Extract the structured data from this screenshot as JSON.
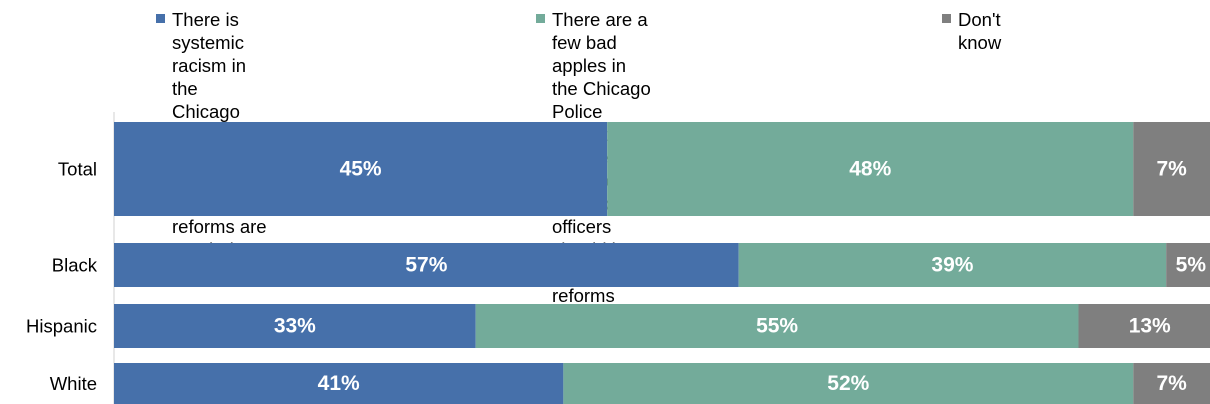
{
  "chart_data": {
    "type": "bar",
    "orientation": "horizontal",
    "stacked": true,
    "categories": [
      "Total",
      "Black",
      "Hispanic",
      "White"
    ],
    "series": [
      {
        "name": "There is systemic racism in the Chicago Police Department, and significant reforms are needed",
        "values": [
          45,
          57,
          33,
          41
        ],
        "labels": [
          "45%",
          "57%",
          "33%",
          "41%"
        ],
        "color": "#4670AA"
      },
      {
        "name": "There are a few bad apples in the Chicago Police Department, and dealing with those specific officers should be the focus of reforms",
        "values": [
          48,
          39,
          55,
          52
        ],
        "labels": [
          "48%",
          "39%",
          "55%",
          "52%"
        ],
        "color": "#73AB9A"
      },
      {
        "name": "Don't know",
        "values": [
          7,
          5,
          13,
          7
        ],
        "labels": [
          "7%",
          "5%",
          "13%",
          "7%"
        ],
        "color": "#7F7F7F"
      }
    ],
    "xlim": [
      0,
      100
    ],
    "legend_position": "top",
    "grid": false
  },
  "legend": {
    "items": [
      {
        "label": "There is systemic racism in the\nChicago Police Department, and\nsignificant reforms are needed",
        "color": "#4670AA"
      },
      {
        "label": "There are a few bad apples in the Chicago\nPolice Department, and dealing with those\nspecific officers should be the focus of reforms",
        "color": "#73AB9A"
      },
      {
        "label": "Don't know",
        "color": "#7F7F7F"
      }
    ]
  }
}
